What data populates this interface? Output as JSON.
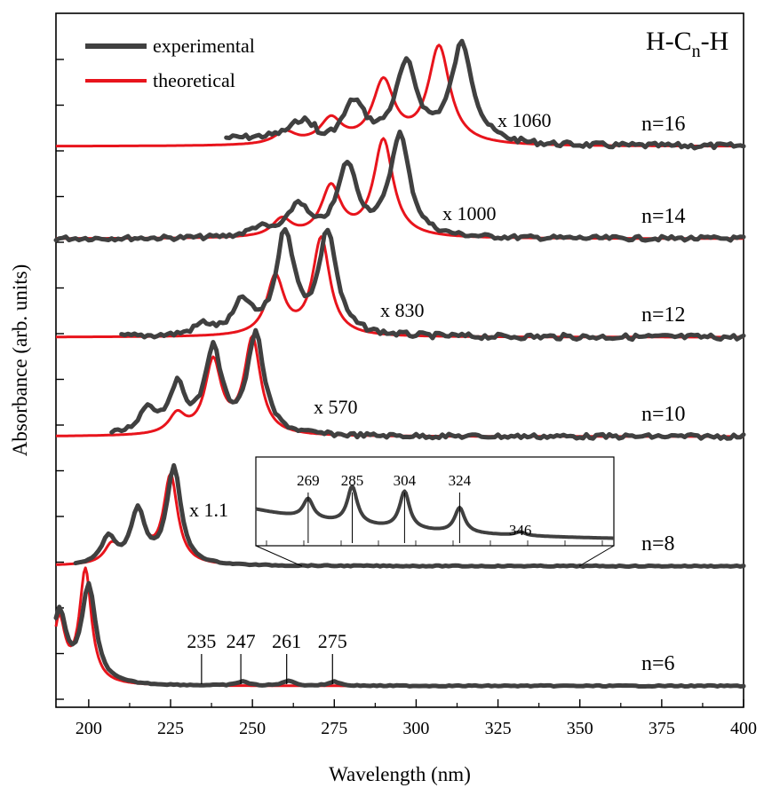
{
  "chart_data": {
    "type": "line",
    "title": "H-C",
    "title_sub": "n",
    "title_end": "-H",
    "xlabel": "Wavelength (nm)",
    "ylabel": "Absorbance (arb. units)",
    "xlim": [
      190,
      400
    ],
    "x_ticks": [
      200,
      225,
      250,
      275,
      300,
      325,
      350,
      375,
      400
    ],
    "y_ticks": "none",
    "grid": false,
    "legend": {
      "placement": "top-left",
      "entries": [
        {
          "name": "experimental",
          "color": "#404040"
        },
        {
          "name": "theoretical",
          "color": "#e8141c"
        }
      ]
    },
    "series": [
      {
        "n_label": "n=16",
        "scale_label": "x 1060",
        "experimental_peaks_nm": [
          265,
          281,
          297,
          314
        ],
        "experimental_range_nm": [
          242,
          400
        ],
        "theoretical_peaks_nm": [
          260,
          274,
          290,
          307
        ]
      },
      {
        "n_label": "n=14",
        "scale_label": "x 1000",
        "experimental_peaks_nm": [
          252,
          264,
          279,
          295
        ],
        "experimental_range_nm": [
          190,
          400
        ],
        "theoretical_peaks_nm": [
          259,
          274,
          290
        ]
      },
      {
        "n_label": "n=12",
        "scale_label": "x 830",
        "experimental_peaks_nm": [
          235,
          247,
          260,
          273
        ],
        "experimental_range_nm": [
          210,
          400
        ],
        "theoretical_peaks_nm": [
          257,
          271
        ]
      },
      {
        "n_label": "n=10",
        "scale_label": "x 570",
        "experimental_peaks_nm": [
          218,
          227,
          238,
          251
        ],
        "experimental_range_nm": [
          207,
          400
        ],
        "theoretical_peaks_nm": [
          227,
          238,
          250
        ]
      },
      {
        "n_label": "n=8",
        "scale_label": "x 1.1",
        "experimental_peaks_nm": [
          206,
          215,
          226
        ],
        "experimental_range_nm": [
          196,
          400
        ],
        "theoretical_peaks_nm": [
          207,
          215,
          225
        ]
      },
      {
        "n_label": "n=6",
        "scale_label": "",
        "experimental_peaks_nm": [
          191,
          200,
          247,
          261,
          275
        ],
        "experimental_range_nm": [
          190,
          400
        ],
        "theoretical_peaks_nm": [
          191,
          199
        ]
      }
    ],
    "annotations": {
      "n6_peak_labels": [
        "235",
        "247",
        "261",
        "275"
      ],
      "inset_peak_labels": [
        "269",
        "285",
        "304",
        "324",
        "346"
      ]
    }
  }
}
